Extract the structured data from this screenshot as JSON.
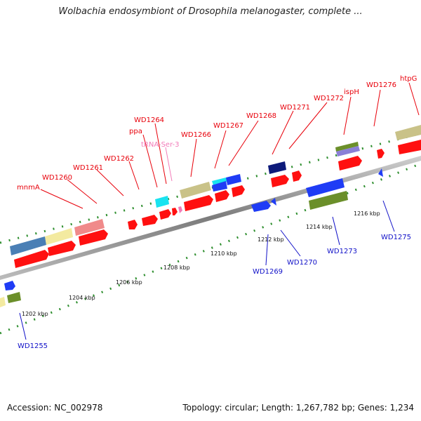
{
  "title": "Wolbachia endosymbiont of Drosophila melanogaster, complete ...",
  "footer": {
    "accession": "Accession: NC_002978",
    "summary": "Topology: circular; Length: 1,267,782 bp; Genes: 1,234"
  },
  "scale_labels": [
    "1202 kbp",
    "1204 kbp",
    "1206 kbp",
    "1208 kbp",
    "1210 kbp",
    "1212 kbp",
    "1214 kbp",
    "1216 kbp"
  ],
  "top_labels": [
    "mnmA",
    "WD1260",
    "WD1261",
    "WD1262",
    "ppa",
    "WD1264",
    "tRNA-Ser-3",
    "WD1266",
    "WD1267",
    "WD1268",
    "WD1271",
    "WD1272",
    "ispH",
    "WD1276",
    "htpG"
  ],
  "bottom_labels": [
    "WD1255",
    "WD1269",
    "WD1270",
    "WD1273",
    "WD1275"
  ],
  "colors": {
    "cds": "#ff1010",
    "forward_blue": "#1f3cf5",
    "navy": "#0d1a7a",
    "cyan": "#19e3f0",
    "khaki": "#c9c288",
    "steel": "#4a7fb5",
    "pale_yellow": "#f3eaa0",
    "salmon": "#f08a8a",
    "olive": "#6b8f2a",
    "lavender": "#8a7fd6",
    "trna": "#f27ab8",
    "axis": "#8a8a8a",
    "ticks": "#2f8f2f"
  }
}
